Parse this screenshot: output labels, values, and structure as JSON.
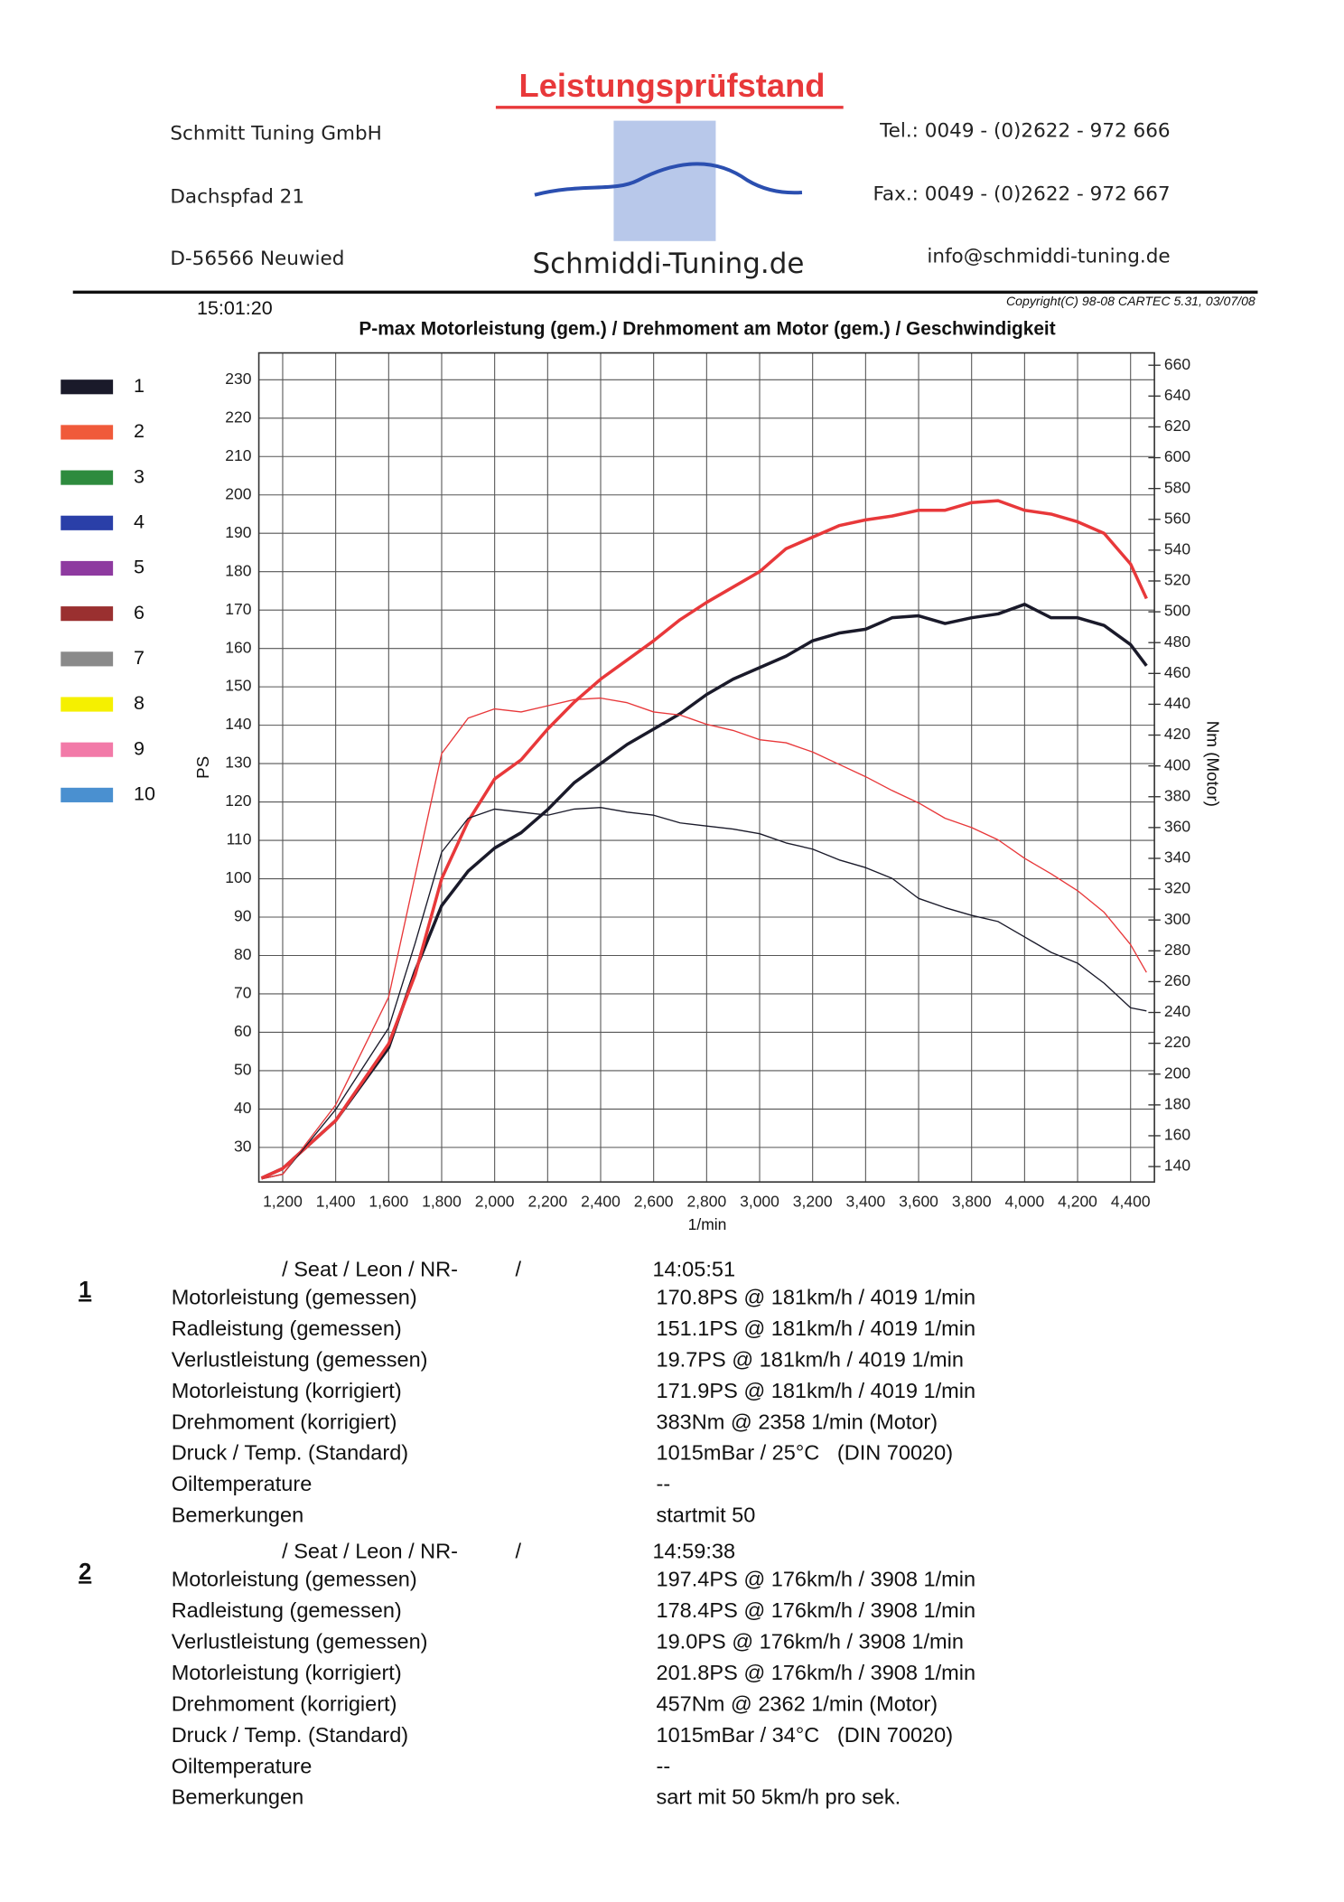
{
  "header": {
    "title": "Leistungsprüfstand",
    "company": [
      "Schmitt Tuning GmbH",
      "Dachspfad 21",
      "D-56566 Neuwied"
    ],
    "contact": [
      "Tel.: 0049 - (0)2622 - 972 666",
      "Fax.: 0049 - (0)2622 - 972 667",
      "info@schmiddi-tuning.de"
    ],
    "logo_text": "Schmiddi-Tuning.de",
    "time": "15:01:20",
    "copyright": "Copyright(C) 98-08 CARTEC 5.31, 03/07/08"
  },
  "legend": [
    {
      "label": "1",
      "color": "#1a1a2a"
    },
    {
      "label": "2",
      "color": "#f05a3a"
    },
    {
      "label": "3",
      "color": "#2e8b3e"
    },
    {
      "label": "4",
      "color": "#2a3fa8"
    },
    {
      "label": "5",
      "color": "#8e3aa0"
    },
    {
      "label": "6",
      "color": "#9a3030"
    },
    {
      "label": "7",
      "color": "#8a8a8a"
    },
    {
      "label": "8",
      "color": "#f5f000"
    },
    {
      "label": "9",
      "color": "#f27aa8"
    },
    {
      "label": "10",
      "color": "#4a90d0"
    }
  ],
  "chart_data": {
    "type": "line",
    "title": "P-max Motorleistung (gem.) / Drehmoment am Motor (gem.) / Geschwindigkeit",
    "xlabel": "1/min",
    "ylabel": "PS",
    "y2label": "Nm (Motor)",
    "grid": true,
    "x": [
      1120,
      1200,
      1400,
      1600,
      1700,
      1800,
      1900,
      2000,
      2100,
      2200,
      2300,
      2400,
      2500,
      2600,
      2700,
      2800,
      2900,
      3000,
      3100,
      3200,
      3300,
      3400,
      3500,
      3600,
      3700,
      3800,
      3900,
      4000,
      4100,
      4200,
      4300,
      4400,
      4460
    ],
    "xlim": [
      1110,
      4490
    ],
    "xticks": [
      {
        "value": 1200,
        "label": "1,200"
      },
      {
        "value": 1400,
        "label": "1,400"
      },
      {
        "value": 1600,
        "label": "1,600"
      },
      {
        "value": 1800,
        "label": "1,800"
      },
      {
        "value": 2000,
        "label": "2,000"
      },
      {
        "value": 2200,
        "label": "2,200"
      },
      {
        "value": 2400,
        "label": "2,400"
      },
      {
        "value": 2600,
        "label": "2,600"
      },
      {
        "value": 2800,
        "label": "2,800"
      },
      {
        "value": 3000,
        "label": "3,000"
      },
      {
        "value": 3200,
        "label": "3,200"
      },
      {
        "value": 3400,
        "label": "3,400"
      },
      {
        "value": 3600,
        "label": "3,600"
      },
      {
        "value": 3800,
        "label": "3,800"
      },
      {
        "value": 4000,
        "label": "4,000"
      },
      {
        "value": 4200,
        "label": "4,200"
      },
      {
        "value": 4400,
        "label": "4,400"
      }
    ],
    "ylim": [
      21,
      237
    ],
    "yticks": [
      30,
      40,
      50,
      60,
      70,
      80,
      90,
      100,
      110,
      120,
      130,
      140,
      150,
      160,
      170,
      180,
      190,
      200,
      210,
      220,
      230
    ],
    "y2lim": [
      130,
      668
    ],
    "y2ticks": [
      140,
      160,
      180,
      200,
      220,
      240,
      260,
      280,
      300,
      320,
      340,
      360,
      380,
      400,
      420,
      440,
      460,
      480,
      500,
      520,
      540,
      560,
      580,
      600,
      620,
      640,
      660
    ],
    "series": [
      {
        "color": "#1a1a2a",
        "line_width": 2.6,
        "axis": "y",
        "values": [
          22,
          24.5,
          37,
          56,
          76,
          93,
          102,
          108,
          112,
          118,
          125,
          130,
          135,
          139,
          143,
          148,
          152,
          155,
          158,
          162,
          164,
          165,
          168,
          168.5,
          166.5,
          168,
          169,
          171.5,
          168,
          168,
          166,
          161,
          155.5
        ]
      },
      {
        "color": "#e8383a",
        "line_width": 2.6,
        "axis": "y",
        "values": [
          22,
          24.5,
          37,
          57,
          75,
          100,
          115,
          126,
          131,
          139,
          146,
          152,
          157,
          162,
          167.5,
          172,
          176,
          180,
          186,
          189,
          192,
          193.5,
          194.5,
          196,
          196,
          198,
          198.5,
          196,
          195,
          193,
          190,
          182,
          173
        ]
      },
      {
        "color": "#1a1a2a",
        "line_width": 1,
        "axis": "y2",
        "values": [
          132,
          135,
          177,
          230,
          285,
          344,
          366,
          372,
          370,
          368,
          372,
          373,
          370,
          368,
          363,
          361,
          359,
          356,
          350,
          346,
          339,
          334,
          327,
          314,
          308,
          303,
          299,
          289,
          279,
          272,
          259,
          243,
          241
        ]
      },
      {
        "color": "#e8383a",
        "line_width": 1,
        "axis": "y2",
        "values": [
          132,
          135,
          180,
          250,
          329,
          408,
          431,
          437,
          435,
          439,
          443,
          444,
          441,
          435,
          433,
          427,
          423,
          417,
          415,
          409,
          401,
          393,
          384,
          376,
          366,
          360,
          352,
          340,
          330,
          319,
          305,
          284,
          266
        ]
      }
    ]
  },
  "results": [
    {
      "number": "1",
      "vehicle": "/ Seat / Leon / NR-",
      "separator": "/",
      "time": "14:05:51",
      "rows": [
        [
          "Motorleistung (gemessen)",
          "170.8PS @ 181km/h / 4019 1/min"
        ],
        [
          "Radleistung (gemessen)",
          "151.1PS @ 181km/h / 4019 1/min"
        ],
        [
          "Verlustleistung (gemessen)",
          "19.7PS @ 181km/h / 4019 1/min"
        ],
        [
          "Motorleistung (korrigiert)",
          "171.9PS @ 181km/h / 4019 1/min"
        ],
        [
          "Drehmoment (korrigiert)",
          "383Nm @ 2358 1/min (Motor)"
        ],
        [
          "Druck / Temp. (Standard)",
          "1015mBar / 25°C   (DIN 70020)"
        ],
        [
          "Oiltemperature",
          "--"
        ],
        [
          "Bemerkungen",
          "startmit 50"
        ]
      ]
    },
    {
      "number": "2",
      "vehicle": "/ Seat / Leon / NR-",
      "separator": "/",
      "time": "14:59:38",
      "rows": [
        [
          "Motorleistung (gemessen)",
          "197.4PS @ 176km/h / 3908 1/min"
        ],
        [
          "Radleistung (gemessen)",
          "178.4PS @ 176km/h / 3908 1/min"
        ],
        [
          "Verlustleistung (gemessen)",
          "19.0PS @ 176km/h / 3908 1/min"
        ],
        [
          "Motorleistung (korrigiert)",
          "201.8PS @ 176km/h / 3908 1/min"
        ],
        [
          "Drehmoment (korrigiert)",
          "457Nm @ 2362 1/min (Motor)"
        ],
        [
          "Druck / Temp. (Standard)",
          "1015mBar / 34°C   (DIN 70020)"
        ],
        [
          "Oiltemperature",
          "--"
        ],
        [
          "Bemerkungen",
          "sart mit 50 5km/h pro sek."
        ]
      ]
    }
  ]
}
